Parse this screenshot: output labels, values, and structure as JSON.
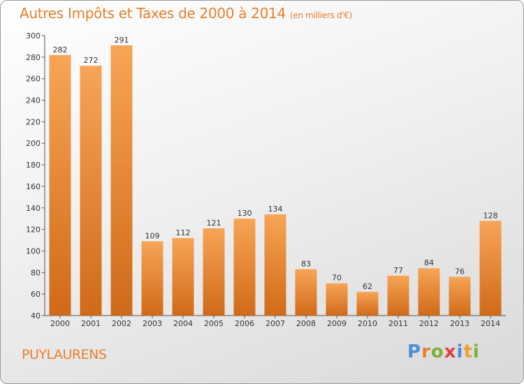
{
  "title": "Autres Impôts et Taxes de 2000 à 2014",
  "unit": "(en milliers d'€)",
  "commune": "PUYLAURENS",
  "logo": {
    "p": "P",
    "r": "r",
    "o": "o",
    "x": "x",
    "i1": "i",
    "t": "t",
    "i2": "i"
  },
  "colors": {
    "bar_light": "#f7a556",
    "bar_dark": "#d06a18",
    "accent": "#e87f2c"
  },
  "chart_data": {
    "type": "bar",
    "categories": [
      "2000",
      "2001",
      "2002",
      "2003",
      "2004",
      "2005",
      "2006",
      "2007",
      "2008",
      "2009",
      "2010",
      "2011",
      "2012",
      "2013",
      "2014"
    ],
    "values": [
      282,
      272,
      291,
      109,
      112,
      121,
      130,
      134,
      83,
      70,
      62,
      77,
      84,
      76,
      128
    ],
    "ylim": [
      40,
      300
    ],
    "yticks": [
      40,
      60,
      80,
      100,
      120,
      140,
      160,
      180,
      200,
      220,
      240,
      260,
      280,
      300
    ],
    "grid": false,
    "data_labels": true
  }
}
